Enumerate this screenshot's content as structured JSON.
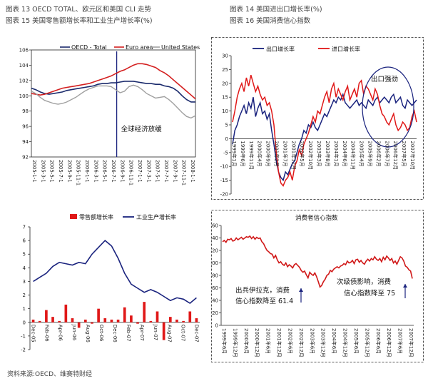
{
  "captions": {
    "c13": "图表 13 OECD TOTAL、欧元区和美国 CLI 走势",
    "c14": "图表 14 美国进出口增长率(%)",
    "c15": "图表 15 美国零售额增长率和工业生产增长率(%)",
    "c16": "图表 16 美国消费信心指数"
  },
  "footer": "资料来源:OECD、维赛特财经",
  "chart_data": [
    {
      "type": "line",
      "series": [
        {
          "name": "OECD - Total",
          "color": "#1a2a6c",
          "values": [
            101.0,
            100.8,
            100.5,
            100.3,
            100.2,
            100.3,
            100.4,
            100.5,
            100.7,
            100.8,
            100.9,
            101.0,
            101.1,
            101.2,
            101.3,
            101.5,
            101.6,
            101.6,
            101.7,
            101.7,
            101.8,
            101.9,
            101.9,
            101.9,
            101.8,
            101.7,
            101.6,
            101.6,
            101.5,
            101.5,
            101.3,
            101.2,
            101.0,
            100.6,
            100.0,
            99.5,
            99.2,
            99.2
          ]
        },
        {
          "name": "Euro area",
          "color": "#d42020",
          "values": [
            100.3,
            100.2,
            100.1,
            100.2,
            100.4,
            100.6,
            100.8,
            101.0,
            101.1,
            101.2,
            101.3,
            101.4,
            101.5,
            101.6,
            101.8,
            102.0,
            102.2,
            102.4,
            102.6,
            102.9,
            103.2,
            103.4,
            103.7,
            104.0,
            104.2,
            104.2,
            104.1,
            103.9,
            103.7,
            103.3,
            103.0,
            102.6,
            102.1,
            101.6,
            101.1,
            100.6,
            100.1,
            99.6
          ]
        },
        {
          "name": "United States",
          "color": "#a0a0a0",
          "values": [
            100.6,
            100.3,
            99.8,
            99.4,
            99.2,
            99.0,
            98.9,
            99.0,
            99.2,
            99.5,
            99.8,
            100.2,
            100.6,
            100.9,
            101.1,
            101.3,
            101.3,
            101.3,
            101.2,
            100.8,
            100.4,
            100.6,
            101.2,
            101.4,
            101.2,
            100.8,
            100.3,
            100.0,
            99.7,
            99.8,
            99.9,
            99.5,
            99.0,
            98.4,
            97.8,
            97.3,
            97.1,
            97.4
          ]
        }
      ],
      "x_labels": [
        "2005-1-1",
        "2005-3-1",
        "2005-5-1",
        "2005-7-1",
        "2005-9-1",
        "2005-11-1",
        "2006-1-1",
        "2006-3-1",
        "2006-5-1",
        "2006-7-1",
        "2006-9-1",
        "2006-11-1",
        "2007-1-1",
        "2007-3-1",
        "2007-5-1",
        "2007-7-1",
        "2007-9-1",
        "2007-11-1",
        "2008-1-1"
      ],
      "ylim": [
        92,
        106
      ],
      "yticks": [
        92,
        94,
        96,
        98,
        100,
        102,
        104,
        106
      ],
      "annotation": "全球经济放缓",
      "legend": "top"
    },
    {
      "type": "line",
      "series": [
        {
          "name": "出口增长率",
          "color": "#1a237e",
          "values": [
            -2,
            3,
            5,
            8,
            10,
            12,
            9,
            13,
            11,
            15,
            8,
            11,
            13,
            9,
            10,
            7,
            9,
            3,
            -2,
            -8,
            -12,
            -14,
            -15,
            -12,
            -13,
            -11,
            -9,
            -8,
            -5,
            -2,
            0,
            3,
            2,
            5,
            4,
            6,
            4,
            3,
            5,
            7,
            9,
            8,
            10,
            12,
            14,
            13,
            15,
            14,
            16,
            13,
            12,
            11,
            12,
            13,
            14,
            12,
            13,
            12,
            11,
            14,
            13,
            12,
            14,
            15,
            13,
            14,
            15,
            14,
            13,
            15,
            16,
            13,
            14,
            15,
            12,
            11,
            14,
            13,
            12,
            13,
            14
          ]
        },
        {
          "name": "进口增长率",
          "color": "#e01818",
          "values": [
            6,
            10,
            15,
            18,
            20,
            17,
            22,
            19,
            23,
            20,
            17,
            19,
            16,
            14,
            15,
            12,
            13,
            10,
            5,
            -5,
            -12,
            -16,
            -17,
            -15,
            -14,
            -12,
            -15,
            -10,
            -8,
            -4,
            -6,
            -2,
            0,
            2,
            5,
            8,
            6,
            10,
            9,
            12,
            15,
            17,
            13,
            18,
            20,
            15,
            18,
            16,
            14,
            17,
            19,
            14,
            16,
            18,
            15,
            20,
            21,
            16,
            19,
            18,
            16,
            14,
            18,
            16,
            12,
            9,
            8,
            6,
            5,
            7,
            9,
            5,
            3,
            4,
            6,
            5,
            3,
            4,
            8,
            10,
            6
          ]
        }
      ],
      "x_labels": [
        "1999年1月",
        "1999年6月",
        "1999年11月",
        "2000年4月",
        "2000年9月",
        "2001年2月",
        "2001年7月",
        "2001年12月",
        "2002年5月",
        "2002年10月",
        "2003年3月",
        "2003年8月",
        "2004年1月",
        "2004年6月",
        "2004年11月",
        "2005年4月",
        "2005年9月",
        "2006年2月",
        "2006年7月",
        "2006年12月",
        "2007年5月",
        "2007年10月"
      ],
      "ylim": [
        -20,
        30
      ],
      "yticks": [
        -20,
        -15,
        -10,
        -5,
        0,
        5,
        10,
        15,
        20,
        25,
        30
      ],
      "annotation": "出口强劲",
      "legend": "top"
    },
    {
      "type": "bar",
      "series": [
        {
          "name": "零售额增长率",
          "type": "bar",
          "color": "#e01818",
          "values": [
            0.2,
            0.1,
            0.9,
            0.4,
            0.1,
            1.3,
            0.3,
            -0.4,
            0.2,
            -0.1,
            1.0,
            0.3,
            0.2,
            0.2,
            1.1,
            0.5,
            -0.1,
            1.5,
            0.1,
            0.8,
            -1.3,
            0.4,
            0.2,
            0.1,
            0.8,
            0.3
          ]
        },
        {
          "name": "工业生产增长率",
          "type": "line",
          "color": "#1a237e",
          "values": [
            3.0,
            3.3,
            3.6,
            4.1,
            4.4,
            4.3,
            4.2,
            4.4,
            4.3,
            5.0,
            5.5,
            6.0,
            5.6,
            4.7,
            3.6,
            2.8,
            2.5,
            2.2,
            2.4,
            2.2,
            1.9,
            1.6,
            1.8,
            1.7,
            1.4,
            1.8
          ]
        }
      ],
      "x_labels": [
        "Dec-05",
        "Feb-06",
        "Apr-06",
        "Jun-06",
        "Aug-06",
        "Oct-06",
        "Dec-06",
        "Feb-07",
        "Apr-07",
        "Jun-07",
        "Aug-07",
        "Oct-07",
        "Dec-07"
      ],
      "ylim": [
        -2,
        7
      ],
      "yticks": [
        -2,
        -1,
        0,
        1,
        2,
        3,
        4,
        5,
        6,
        7
      ],
      "legend": "top"
    },
    {
      "type": "line",
      "title": "消费者信心指数",
      "series": [
        {
          "name": "消费者信心指数",
          "color": "#d01818",
          "values": [
            134,
            136,
            133,
            138,
            137,
            139,
            135,
            136,
            140,
            137,
            139,
            141,
            138,
            140,
            142,
            141,
            143,
            139,
            142,
            138,
            141,
            139,
            140,
            134,
            131,
            125,
            120,
            118,
            115,
            114,
            108,
            112,
            105,
            100,
            102,
            98,
            96,
            100,
            94,
            97,
            95,
            92,
            97,
            99,
            96,
            93,
            88,
            85,
            87,
            81,
            76,
            85,
            82,
            80,
            84,
            78,
            70,
            61.4,
            64,
            70,
            74,
            80,
            82,
            88,
            86,
            90,
            92,
            94,
            92,
            95,
            96,
            99,
            97,
            103,
            100,
            101,
            104,
            99,
            105,
            106,
            101,
            104,
            100,
            98,
            103,
            106,
            103,
            107,
            105,
            110,
            106,
            104,
            107,
            102,
            109,
            105,
            111,
            108,
            104,
            107,
            100,
            103,
            98,
            104,
            110,
            108,
            103,
            95,
            93,
            89,
            87,
            75
          ]
        }
      ],
      "x_labels": [
        "1999年6月",
        "1999年12月",
        "2000年6月",
        "2000年12月",
        "2001年6月",
        "2001年12月",
        "2002年6月",
        "2002年12月",
        "2003年6月",
        "2003年12月",
        "2004年6月",
        "2004年12月",
        "2005年6月",
        "2005年12月",
        "2006年6月",
        "2006年12月",
        "2007年6月",
        "2007年12月"
      ],
      "ylim": [
        0,
        160
      ],
      "yticks": [
        0,
        20,
        40,
        60,
        80,
        100,
        120,
        140,
        160
      ],
      "annotations": [
        "出兵伊拉克，消费",
        "信心指数降至 61.4",
        "次级债影响，消费",
        "信心指数降至 75"
      ]
    }
  ]
}
